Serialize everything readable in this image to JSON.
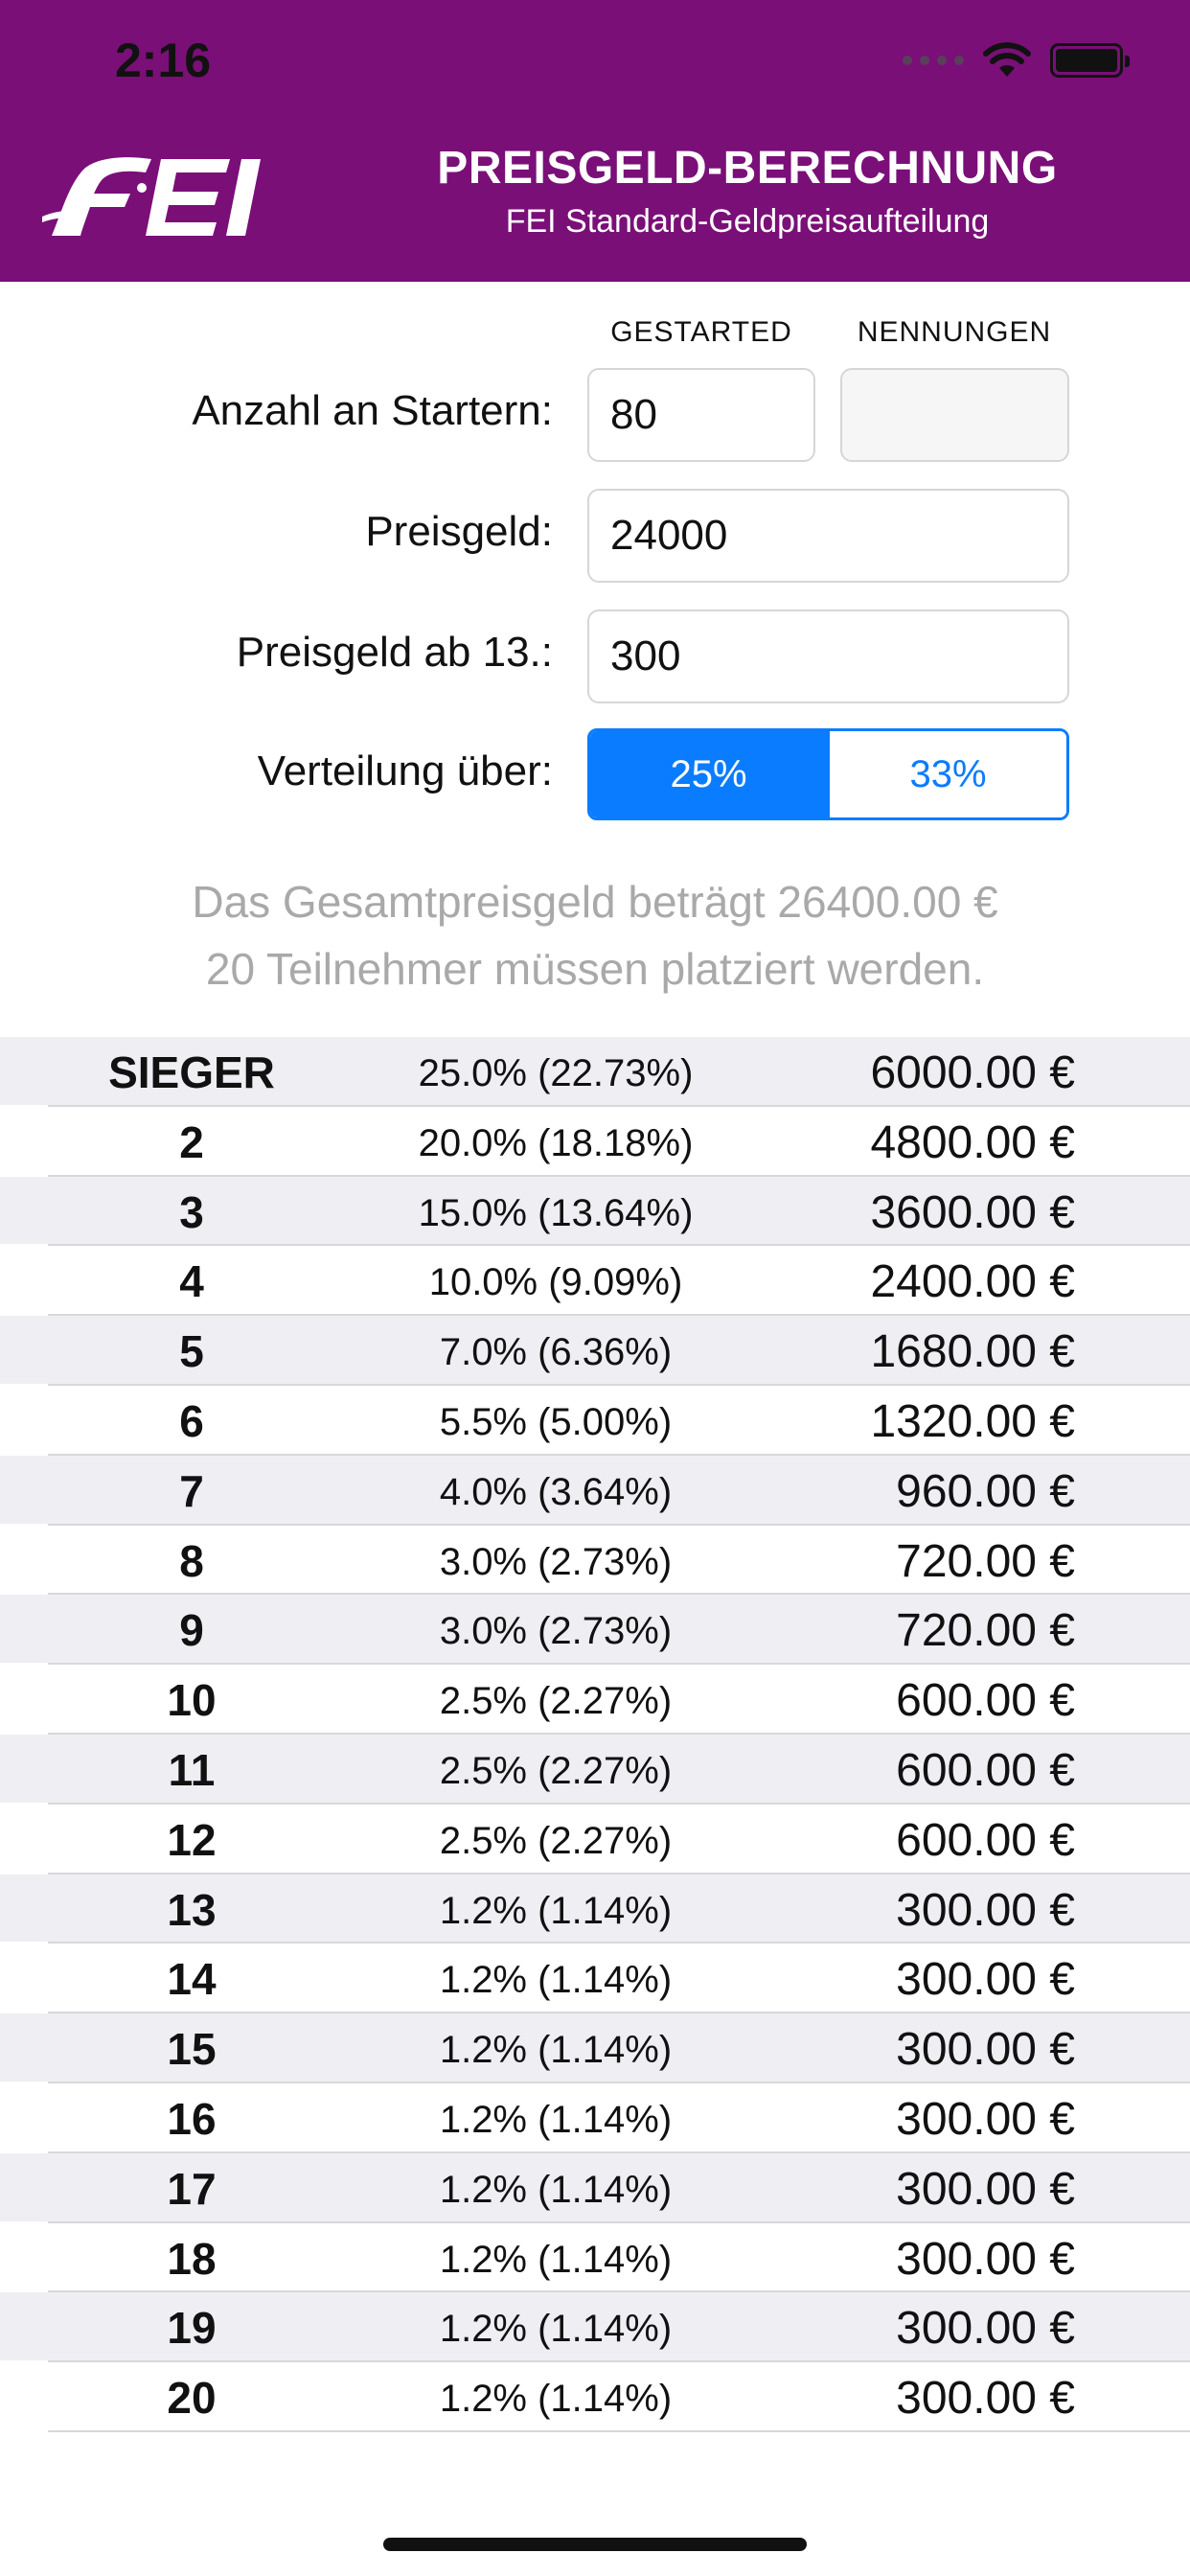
{
  "status_bar": {
    "time": "2:16"
  },
  "header": {
    "logo_text": "FEI",
    "title": "PREISGELD-BERECHNUNG",
    "subtitle": "FEI Standard-Geldpreisaufteilung"
  },
  "form": {
    "col_started": "GESTARTED",
    "col_entries": "NENNUNGEN",
    "starters_label": "Anzahl an Startern:",
    "starters_started": "80",
    "starters_entries": "",
    "prize_label": "Preisgeld:",
    "prize_value": "24000",
    "prize_from13_label": "Preisgeld ab 13.:",
    "prize_from13_value": "300",
    "distribution_label": "Verteilung über:",
    "distribution_options": [
      "25%",
      "33%"
    ],
    "distribution_selected": "25%"
  },
  "summary": {
    "total": "Das Gesamtpreisgeld beträgt 26400.00 €",
    "placed": "20 Teilnehmer müssen platziert werden."
  },
  "table": [
    {
      "place": "SIEGER",
      "pct": "25.0% (22.73%)",
      "amount": "6000.00 €"
    },
    {
      "place": "2",
      "pct": "20.0% (18.18%)",
      "amount": "4800.00 €"
    },
    {
      "place": "3",
      "pct": "15.0% (13.64%)",
      "amount": "3600.00 €"
    },
    {
      "place": "4",
      "pct": "10.0% (9.09%)",
      "amount": "2400.00 €"
    },
    {
      "place": "5",
      "pct": "7.0% (6.36%)",
      "amount": "1680.00 €"
    },
    {
      "place": "6",
      "pct": "5.5% (5.00%)",
      "amount": "1320.00 €"
    },
    {
      "place": "7",
      "pct": "4.0% (3.64%)",
      "amount": "960.00 €"
    },
    {
      "place": "8",
      "pct": "3.0% (2.73%)",
      "amount": "720.00 €"
    },
    {
      "place": "9",
      "pct": "3.0% (2.73%)",
      "amount": "720.00 €"
    },
    {
      "place": "10",
      "pct": "2.5% (2.27%)",
      "amount": "600.00 €"
    },
    {
      "place": "11",
      "pct": "2.5% (2.27%)",
      "amount": "600.00 €"
    },
    {
      "place": "12",
      "pct": "2.5% (2.27%)",
      "amount": "600.00 €"
    },
    {
      "place": "13",
      "pct": "1.2% (1.14%)",
      "amount": "300.00 €"
    },
    {
      "place": "14",
      "pct": "1.2% (1.14%)",
      "amount": "300.00 €"
    },
    {
      "place": "15",
      "pct": "1.2% (1.14%)",
      "amount": "300.00 €"
    },
    {
      "place": "16",
      "pct": "1.2% (1.14%)",
      "amount": "300.00 €"
    },
    {
      "place": "17",
      "pct": "1.2% (1.14%)",
      "amount": "300.00 €"
    },
    {
      "place": "18",
      "pct": "1.2% (1.14%)",
      "amount": "300.00 €"
    },
    {
      "place": "19",
      "pct": "1.2% (1.14%)",
      "amount": "300.00 €"
    },
    {
      "place": "20",
      "pct": "1.2% (1.14%)",
      "amount": "300.00 €"
    }
  ],
  "colors": {
    "header_bg": "#7a0f78",
    "accent": "#0a7cff",
    "row_alt": "#eeeef3",
    "summary_text": "#a9a9a9"
  }
}
